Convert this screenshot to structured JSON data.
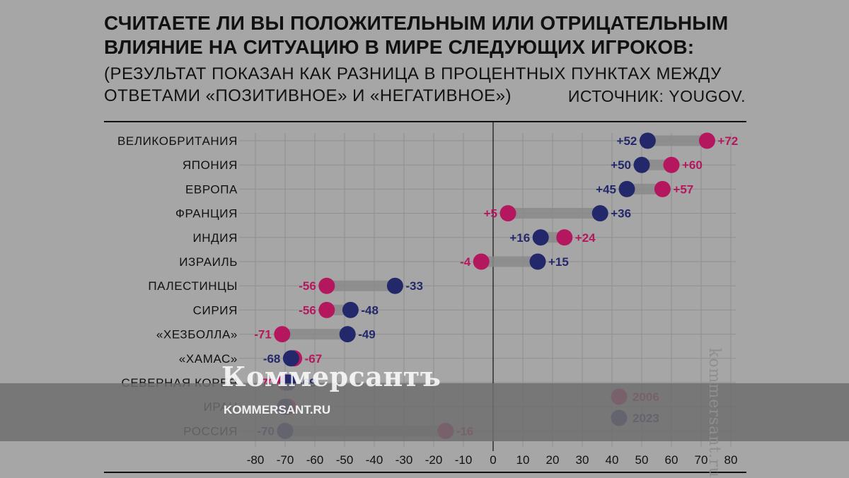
{
  "header": {
    "title_line1": "СЧИТАЕТЕ ЛИ ВЫ ПОЛОЖИТЕЛЬНЫМ ИЛИ ОТРИЦАТЕЛЬНЫМ",
    "title_line2": "ВЛИЯНИЕ НА СИТУАЦИЮ В МИРЕ СЛЕДУЮЩИХ ИГРОКОВ:",
    "subtitle_line1": "(РЕЗУЛЬТАТ ПОКАЗАН КАК РАЗНИЦА В ПРОЦЕНТНЫХ ПУНКТАХ МЕЖДУ",
    "subtitle_line2": "ОТВЕТАМИ «ПОЗИТИВНОЕ» И «НЕГАТИВНОЕ»)",
    "source": "ИСТОЧНИК: YOUGOV."
  },
  "watermark": {
    "logo": "Коммерсантъ",
    "url": "KOMMERSANT.RU",
    "side": "kommersant.ru"
  },
  "colors": {
    "series_2006": "#b5175f",
    "series_2023": "#23286a",
    "connector": "#8a8a8a",
    "grid": "#8f8f8f",
    "text": "#111111"
  },
  "chart_data": {
    "type": "dumbbell",
    "categories": [
      "ВЕЛИКОБРИТАНИЯ",
      "ЯПОНИЯ",
      "ЕВРОПА",
      "ФРАНЦИЯ",
      "ИНДИЯ",
      "ИЗРАИЛЬ",
      "ПАЛЕСТИНЦЫ",
      "СИРИЯ",
      "«ХЕЗБОЛЛА»",
      "«ХАМАС»",
      "СЕВЕРНАЯ КОРЕЯ",
      "ИРАН",
      "РОССИЯ"
    ],
    "series": [
      {
        "name": "2006",
        "values": [
          72,
          60,
          57,
          5,
          24,
          -4,
          -56,
          -56,
          -71,
          -67,
          -70,
          -69,
          -16
        ],
        "labels": [
          "+72",
          "+60",
          "+57",
          "+5",
          "+24",
          "-4",
          "-56",
          "-56",
          "-71",
          "-67",
          "-70",
          "",
          "-16"
        ]
      },
      {
        "name": "2023",
        "values": [
          52,
          50,
          45,
          36,
          16,
          15,
          -33,
          -48,
          -49,
          -68,
          -69,
          -70,
          -70
        ],
        "labels": [
          "+52",
          "+50",
          "+45",
          "+36",
          "+16",
          "+15",
          "-33",
          "-48",
          "-49",
          "-68",
          "-69",
          "",
          "-70"
        ]
      }
    ],
    "xlim": [
      -80,
      80
    ],
    "xticks": [
      -80,
      -70,
      -60,
      -50,
      -40,
      -30,
      -20,
      -10,
      0,
      10,
      20,
      30,
      40,
      50,
      60,
      70,
      80
    ],
    "xlabel": "",
    "ylabel": "",
    "grid": true,
    "legend_position": "bottom-right"
  }
}
